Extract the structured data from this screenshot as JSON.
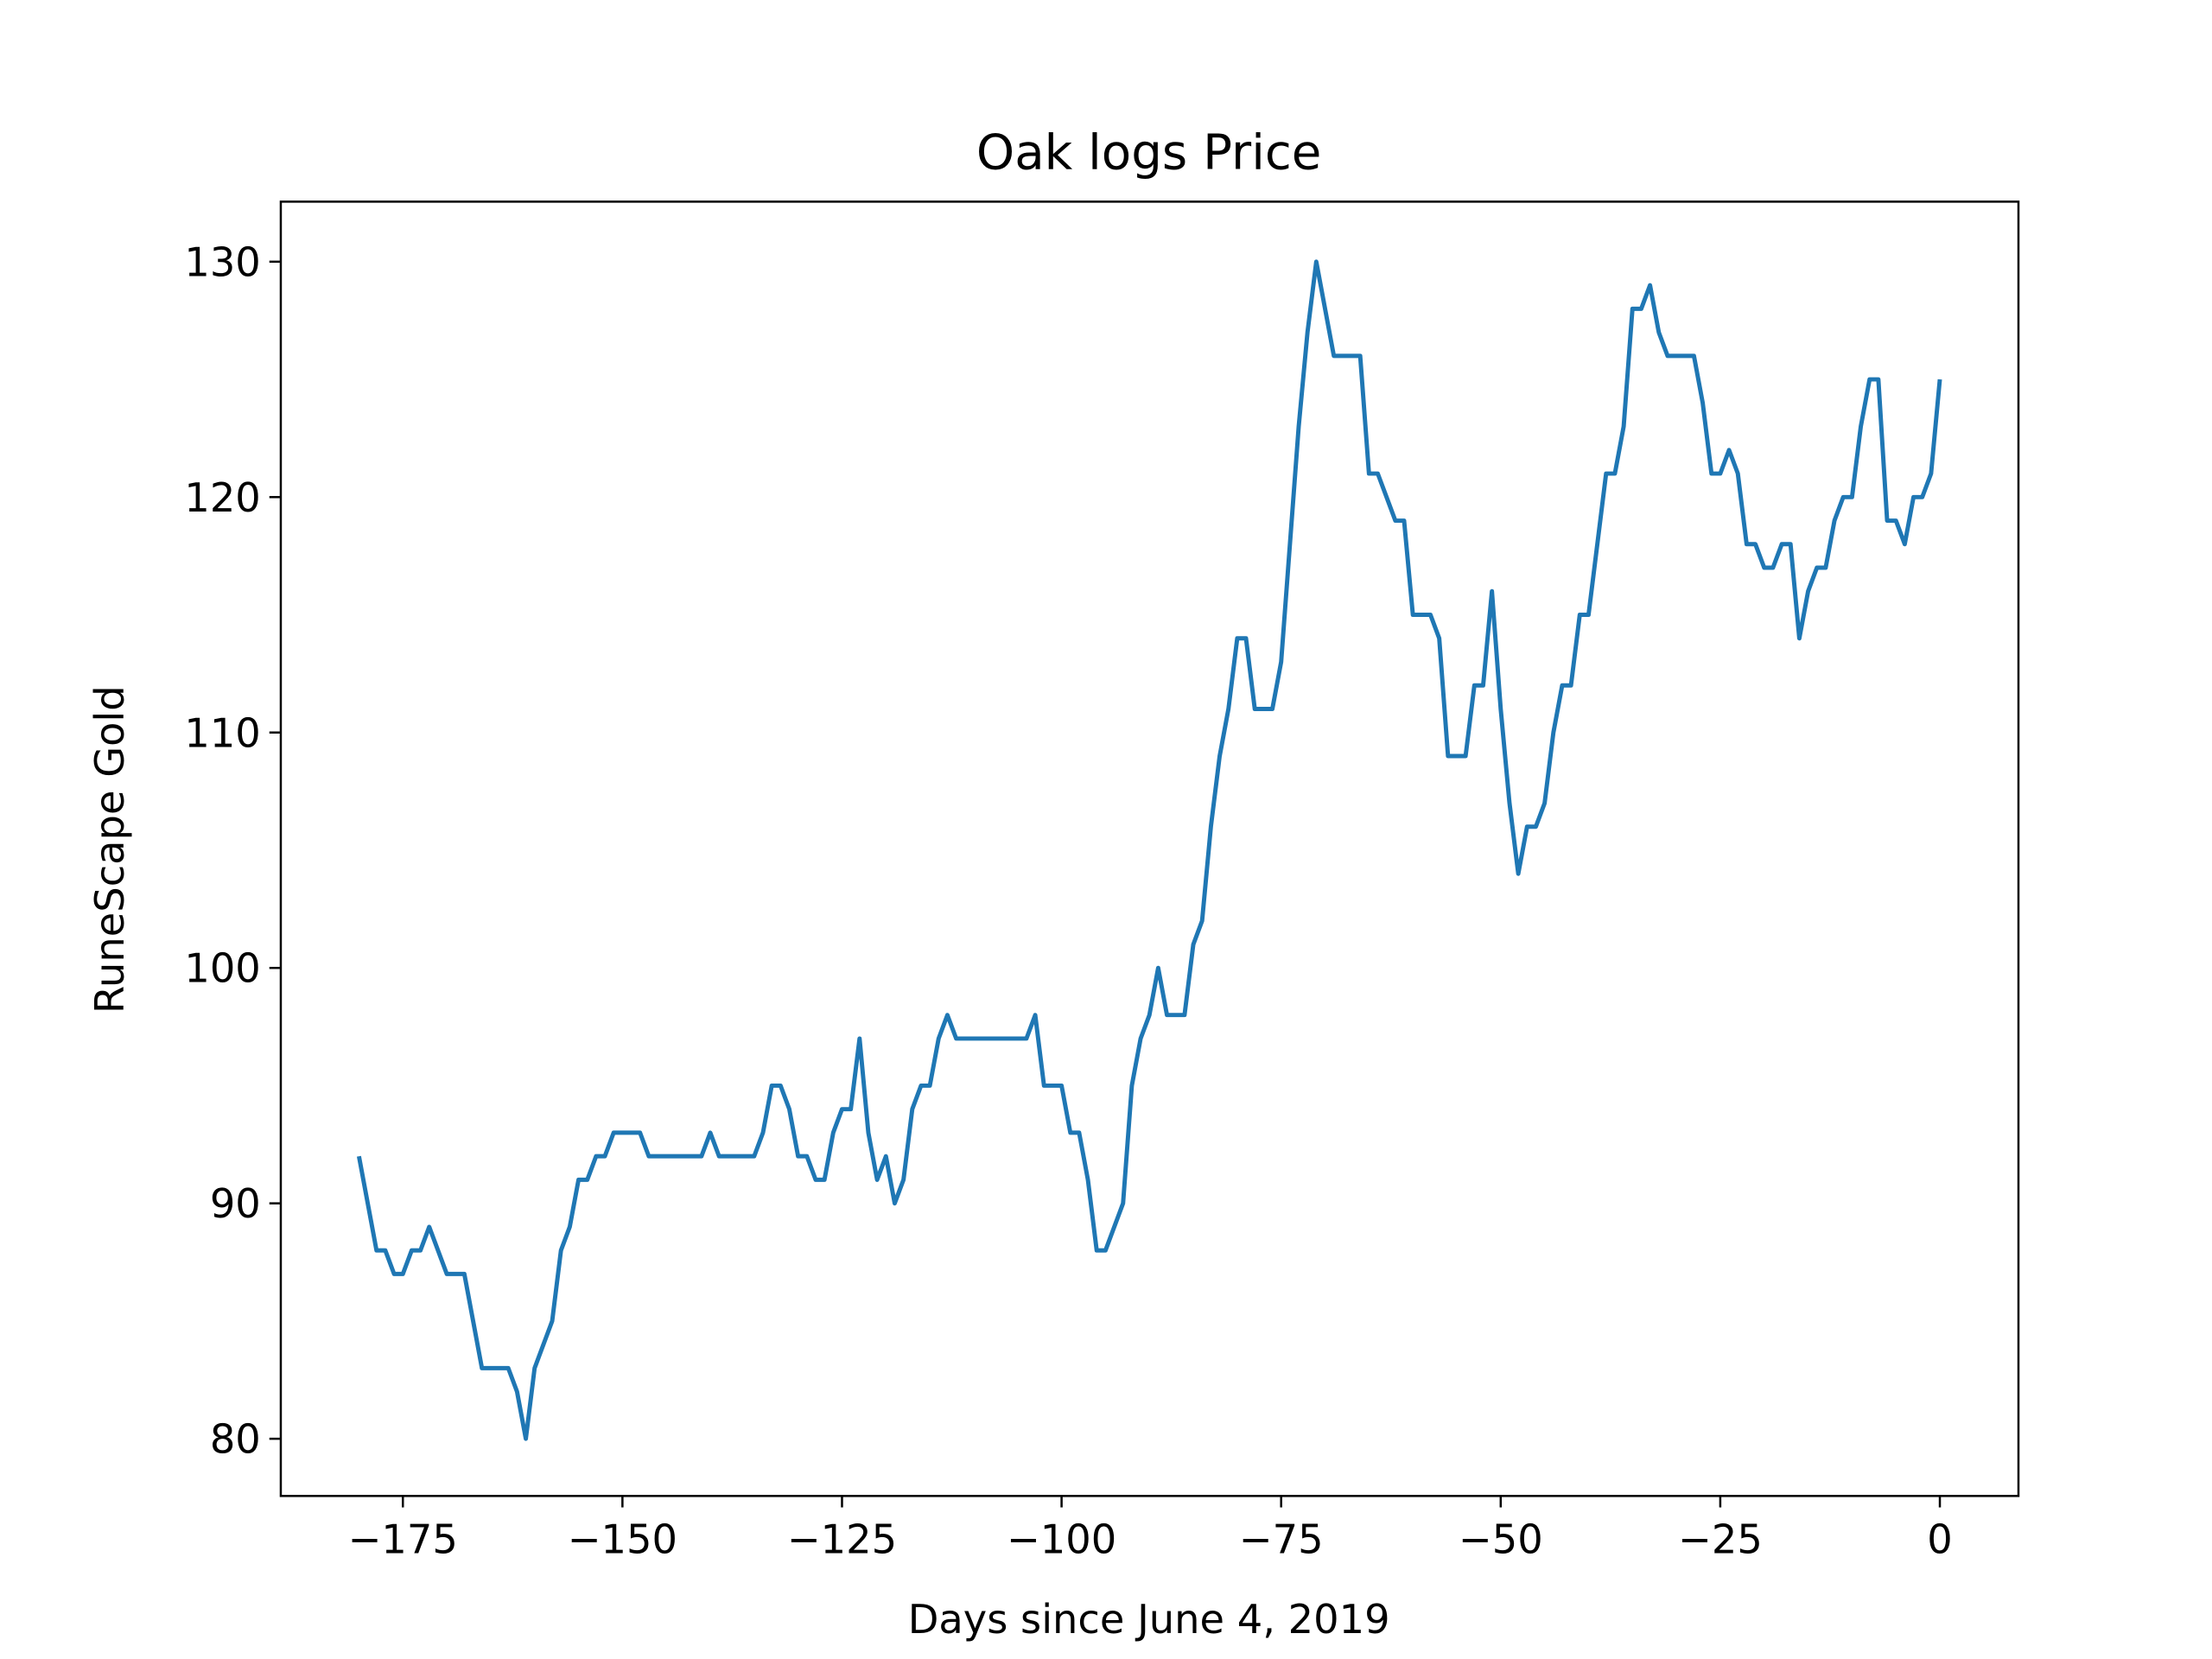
{
  "chart_data": {
    "type": "line",
    "title": "Oak logs Price",
    "xlabel": "Days since June 4, 2019",
    "ylabel": "RuneScape Gold",
    "x": [
      -180,
      -179,
      -178,
      -177,
      -176,
      -175,
      -174,
      -173,
      -172,
      -171,
      -170,
      -169,
      -168,
      -167,
      -166,
      -165,
      -164,
      -163,
      -162,
      -161,
      -160,
      -159,
      -158,
      -157,
      -156,
      -155,
      -154,
      -153,
      -152,
      -151,
      -150,
      -149,
      -148,
      -147,
      -146,
      -145,
      -144,
      -143,
      -142,
      -141,
      -140,
      -139,
      -138,
      -137,
      -136,
      -135,
      -134,
      -133,
      -132,
      -131,
      -130,
      -129,
      -128,
      -127,
      -126,
      -125,
      -124,
      -123,
      -122,
      -121,
      -120,
      -119,
      -118,
      -117,
      -116,
      -115,
      -114,
      -113,
      -112,
      -111,
      -110,
      -109,
      -108,
      -107,
      -106,
      -105,
      -104,
      -103,
      -102,
      -101,
      -100,
      -99,
      -98,
      -97,
      -96,
      -95,
      -94,
      -93,
      -92,
      -91,
      -90,
      -89,
      -88,
      -87,
      -86,
      -85,
      -84,
      -83,
      -82,
      -81,
      -80,
      -79,
      -78,
      -77,
      -76,
      -75,
      -74,
      -73,
      -72,
      -71,
      -70,
      -69,
      -68,
      -67,
      -66,
      -65,
      -64,
      -63,
      -62,
      -61,
      -60,
      -59,
      -58,
      -57,
      -56,
      -55,
      -54,
      -53,
      -52,
      -51,
      -50,
      -49,
      -48,
      -47,
      -46,
      -45,
      -44,
      -43,
      -42,
      -41,
      -40,
      -39,
      -38,
      -37,
      -36,
      -35,
      -34,
      -33,
      -32,
      -31,
      -30,
      -29,
      -28,
      -27,
      -26,
      -25,
      -24,
      -23,
      -22,
      -21,
      -20,
      -19,
      -18,
      -17,
      -16,
      -15,
      -14,
      -13,
      -12,
      -11,
      -10,
      -9,
      -8,
      -7,
      -6,
      -5,
      -4,
      -3,
      -2,
      -1,
      0
    ],
    "series": [
      {
        "name": "Oak logs",
        "color": "#1f77b4",
        "values": [
          92,
          90,
          88,
          88,
          87,
          87,
          88,
          88,
          89,
          88,
          87,
          87,
          87,
          85,
          83,
          83,
          83,
          83,
          82,
          80,
          83,
          84,
          85,
          88,
          89,
          91,
          91,
          92,
          92,
          93,
          93,
          93,
          93,
          92,
          92,
          92,
          92,
          92,
          92,
          92,
          93,
          92,
          92,
          92,
          92,
          92,
          93,
          95,
          95,
          94,
          92,
          92,
          91,
          91,
          93,
          94,
          94,
          97,
          93,
          91,
          92,
          90,
          91,
          94,
          95,
          95,
          97,
          98,
          97,
          97,
          97,
          97,
          97,
          97,
          97,
          97,
          97,
          98,
          95,
          95,
          95,
          93,
          93,
          91,
          88,
          88,
          89,
          90,
          95,
          97,
          98,
          100,
          98,
          98,
          98,
          101,
          102,
          106,
          109,
          111,
          114,
          114,
          111,
          111,
          111,
          113,
          118,
          123,
          127,
          130,
          128,
          126,
          126,
          126,
          126,
          121,
          121,
          120,
          119,
          119,
          115,
          115,
          115,
          114,
          109,
          109,
          109,
          112,
          112,
          116,
          111,
          107,
          104,
          106,
          106,
          107,
          110,
          112,
          112,
          115,
          115,
          118,
          121,
          121,
          123,
          128,
          128,
          129,
          127,
          126,
          126,
          126,
          126,
          124,
          121,
          121,
          122,
          121,
          118,
          118,
          117,
          117,
          118,
          118,
          114,
          116,
          117,
          117,
          119,
          120,
          120,
          123,
          125,
          125,
          119,
          119,
          118,
          120,
          120,
          121,
          125
        ]
      }
    ],
    "xlim": [
      -188.9,
      8.95
    ],
    "ylim": [
      77.57,
      132.55
    ],
    "xticks": [
      {
        "value": -175,
        "label": "−175"
      },
      {
        "value": -150,
        "label": "−150"
      },
      {
        "value": -125,
        "label": "−125"
      },
      {
        "value": -100,
        "label": "−100"
      },
      {
        "value": -75,
        "label": "−75"
      },
      {
        "value": -50,
        "label": "−50"
      },
      {
        "value": -25,
        "label": "−25"
      },
      0
    ],
    "yticks": [
      80,
      90,
      100,
      110,
      120,
      130
    ]
  }
}
